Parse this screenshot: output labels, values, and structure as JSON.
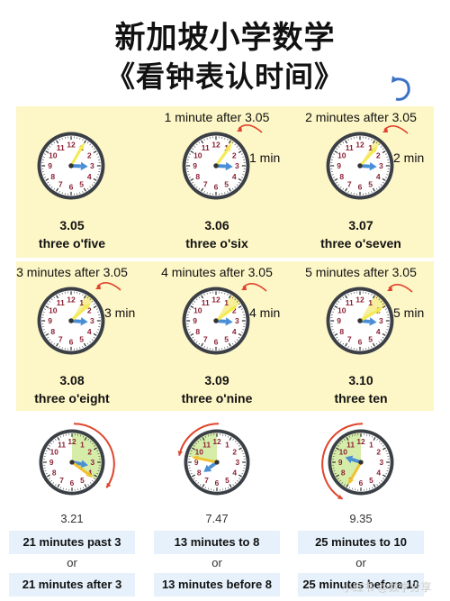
{
  "title_line1": "新加坡小学数学",
  "title_line2": "《看钟表认时间》",
  "top_cells": [
    {
      "caption": "",
      "min_label": "",
      "time": "3.05",
      "words": "three o'five",
      "minute": 5
    },
    {
      "caption": "1 minute after 3.05",
      "min_label": "1 min",
      "time": "3.06",
      "words": "three o'six",
      "minute": 6
    },
    {
      "caption": "2 minutes after 3.05",
      "min_label": "2 min",
      "time": "3.07",
      "words": "three o'seven",
      "minute": 7
    },
    {
      "caption": "3 minutes after 3.05",
      "min_label": "3 min",
      "time": "3.08",
      "words": "three o'eight",
      "minute": 8
    },
    {
      "caption": "4 minutes after 3.05",
      "min_label": "4 min",
      "time": "3.09",
      "words": "three o'nine",
      "minute": 9
    },
    {
      "caption": "5 minutes after 3.05",
      "min_label": "5 min",
      "time": "3.10",
      "words": "three ten",
      "minute": 10
    }
  ],
  "bottom_cells": [
    {
      "time": "3.21",
      "line1": "21 minutes past 3",
      "or": "or",
      "line2": "21 minutes after 3",
      "hour": 3,
      "minute": 21
    },
    {
      "time": "7.47",
      "line1": "13 minutes to 8",
      "or": "or",
      "line2": "13 minutes before 8",
      "hour": 7,
      "minute": 47
    },
    {
      "time": "9.35",
      "line1": "25 minutes to 10",
      "or": "or",
      "line2": "25 minutes before 10",
      "hour": 9,
      "minute": 35
    }
  ],
  "watermark": "小红书 @数学分享",
  "colors": {
    "panel": "#fdf6c6",
    "minute_hand": "#f4ea55",
    "hour_hand": "#4a8fd6",
    "arc": "#e0442c",
    "pill": "#e6f1fb",
    "sector": "#d6edaa"
  },
  "icons": {
    "swirl": "refresh-arrow-icon"
  }
}
